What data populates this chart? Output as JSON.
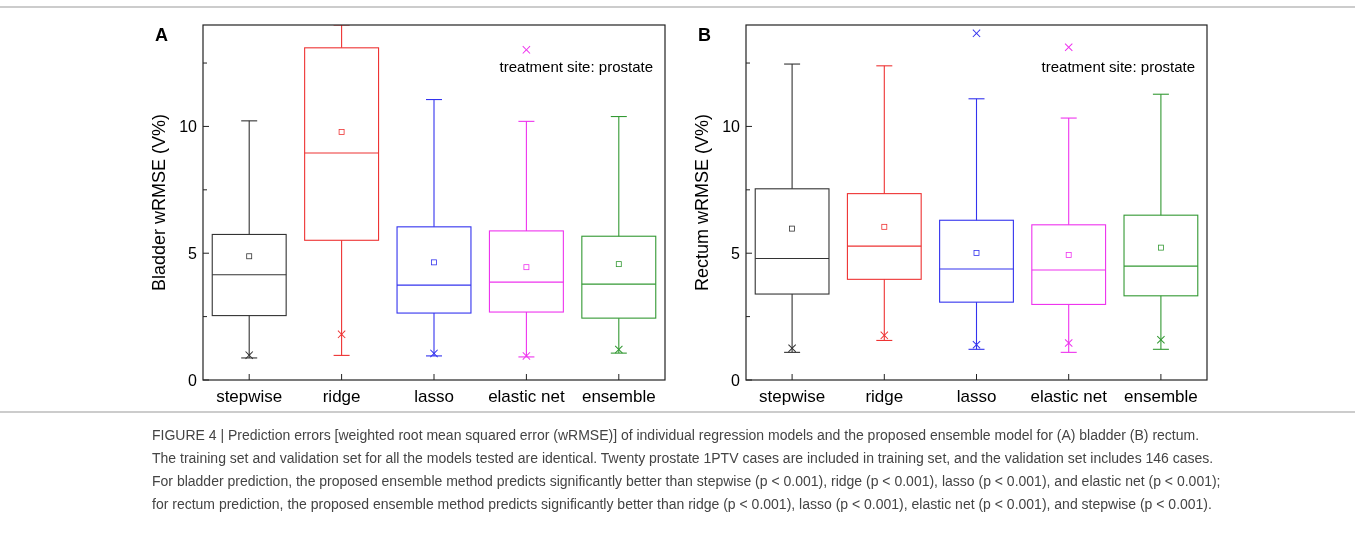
{
  "chart_data": [
    {
      "type": "box",
      "title": "A",
      "ylabel": "Bladder wRMSE (V%)",
      "categories": [
        "stepwise",
        "ridge",
        "lasso",
        "elastic net",
        "ensemble"
      ],
      "colors": [
        "#333333",
        "#ee3333",
        "#3333ee",
        "#ee33ee",
        "#339933"
      ],
      "ylim": [
        0,
        14
      ],
      "yticks": [
        0,
        {
          "value": 2.5,
          "label": null
        },
        5,
        {
          "value": 7.5,
          "label": null
        },
        10,
        {
          "value": 12.5,
          "label": null
        }
      ],
      "boxes": [
        {
          "low": 0.87,
          "q1": 2.54,
          "median": 4.15,
          "q3": 5.74,
          "high": 10.22,
          "mean": 4.88
        },
        {
          "low": 0.97,
          "q1": 5.51,
          "median": 8.95,
          "q3": 13.1,
          "high": 14,
          "mean": 9.78
        },
        {
          "low": 0.95,
          "q1": 2.64,
          "median": 3.74,
          "q3": 6.04,
          "high": 11.06,
          "mean": 4.64
        },
        {
          "low": 0.91,
          "q1": 2.68,
          "median": 3.86,
          "q3": 5.88,
          "high": 10.2,
          "mean": 4.45
        },
        {
          "low": 1.06,
          "q1": 2.44,
          "median": 3.78,
          "q3": 5.67,
          "high": 10.39,
          "mean": 4.57
        }
      ],
      "series": [
        {
          "type": "scatter",
          "marker": "cross",
          "x": [
            "stepwise",
            "ridge",
            "lasso",
            "elastic net",
            "elastic net",
            "ensemble"
          ],
          "values": [
            0.98,
            1.8,
            1.05,
            0.95,
            13.02,
            1.2
          ],
          "colors": [
            "#333333",
            "#ee3333",
            "#3333ee",
            "#ee33ee",
            "#ee33ee",
            "#339933"
          ]
        }
      ],
      "annotations": [
        "treatment site: prostate",
        "FIGURE 4 | Prediction errors [weighted root mean squared error (wRMSE)] of individual regression models and the proposed ensemble model for (A) bladder (B) rectum.",
        "The training set and validation set for all the models tested are identical. Twenty prostate 1PTV cases are included in training set, and the validation set includes 146 cases.",
        "For bladder prediction, the proposed ensemble method predicts significantly better than stepwise (p < 0.001), ridge (p < 0.001), lasso (p < 0.001), and elastic net (p < 0.001);",
        "for rectum prediction, the proposed ensemble method predicts significantly better than ridge (p < 0.001), lasso (p < 0.001), elastic net (p < 0.001), and stepwise (p < 0.001)."
      ]
    },
    {
      "type": "box",
      "title": "B",
      "ylabel": "Rectum wRMSE (V%)",
      "categories": [
        "stepwise",
        "ridge",
        "lasso",
        "elastic net",
        "ensemble"
      ],
      "colors": [
        "#333333",
        "#ee3333",
        "#3333ee",
        "#ee33ee",
        "#339933"
      ],
      "ylim": [
        0,
        14
      ],
      "yticks": [
        0,
        {
          "value": 2.5,
          "label": null
        },
        5,
        {
          "value": 7.5,
          "label": null
        },
        10,
        {
          "value": 12.5,
          "label": null
        }
      ],
      "boxes": [
        {
          "low": 1.09,
          "q1": 3.39,
          "median": 4.79,
          "q3": 7.54,
          "high": 12.46,
          "mean": 5.97
        },
        {
          "low": 1.56,
          "q1": 3.97,
          "median": 5.28,
          "q3": 7.35,
          "high": 12.39,
          "mean": 6.04
        },
        {
          "low": 1.21,
          "q1": 3.07,
          "median": 4.38,
          "q3": 6.3,
          "high": 11.09,
          "mean": 5.01
        },
        {
          "low": 1.09,
          "q1": 2.98,
          "median": 4.34,
          "q3": 6.12,
          "high": 10.33,
          "mean": 4.93
        },
        {
          "low": 1.21,
          "q1": 3.32,
          "median": 4.49,
          "q3": 6.5,
          "high": 11.27,
          "mean": 5.22
        }
      ],
      "series": [
        {
          "type": "scatter",
          "marker": "cross",
          "x": [
            "stepwise",
            "ridge",
            "lasso",
            "lasso",
            "elastic net",
            "elastic net",
            "ensemble"
          ],
          "values": [
            1.25,
            1.76,
            1.39,
            13.67,
            1.46,
            13.12,
            1.59
          ],
          "colors": [
            "#333333",
            "#ee3333",
            "#3333ee",
            "#3333ee",
            "#ee33ee",
            "#ee33ee",
            "#339933"
          ]
        }
      ],
      "annotations": [
        "treatment site: prostate"
      ]
    }
  ]
}
